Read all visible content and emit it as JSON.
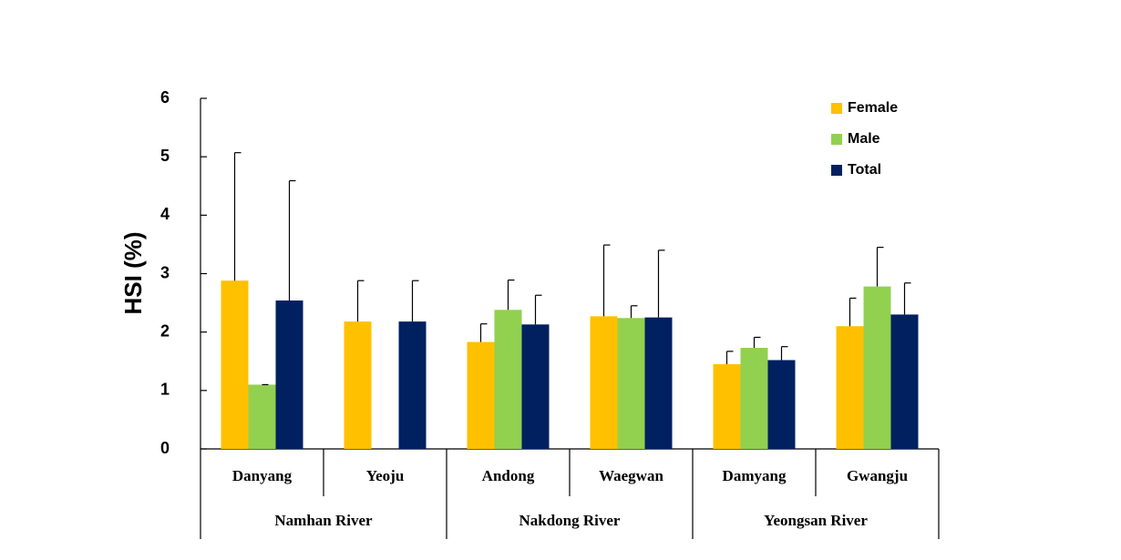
{
  "chart_data": {
    "type": "bar",
    "y_label": "HSI (%)",
    "categories": [
      "Danyang",
      "Yeoju",
      "Andong",
      "Waegwan",
      "Damyang",
      "Gwangju"
    ],
    "category_groups": [
      "Namhan River",
      "Namhan River",
      "Nakdong River",
      "Nakdong River",
      "Yeongsan River",
      "Yeongsan River"
    ],
    "series": [
      {
        "name": "Female",
        "color": "#ffc000",
        "values": [
          2.88,
          2.18,
          1.83,
          2.27,
          1.45,
          2.1
        ],
        "errors": [
          2.19,
          0.7,
          0.31,
          1.22,
          0.22,
          0.48
        ]
      },
      {
        "name": "Male",
        "color": "#92d050",
        "values": [
          1.1,
          null,
          2.38,
          2.24,
          1.73,
          2.78
        ],
        "errors": [
          0,
          null,
          0.51,
          0.21,
          0.18,
          0.67
        ]
      },
      {
        "name": "Total",
        "color": "#002060",
        "values": [
          2.54,
          2.18,
          2.13,
          2.25,
          1.52,
          2.3
        ],
        "errors": [
          2.05,
          0.7,
          0.5,
          1.15,
          0.23,
          0.54
        ]
      }
    ],
    "ylim": [
      0,
      6
    ],
    "yticks": [
      0,
      1,
      2,
      3,
      4,
      5,
      6
    ],
    "grid": false,
    "legend": "upper right"
  }
}
